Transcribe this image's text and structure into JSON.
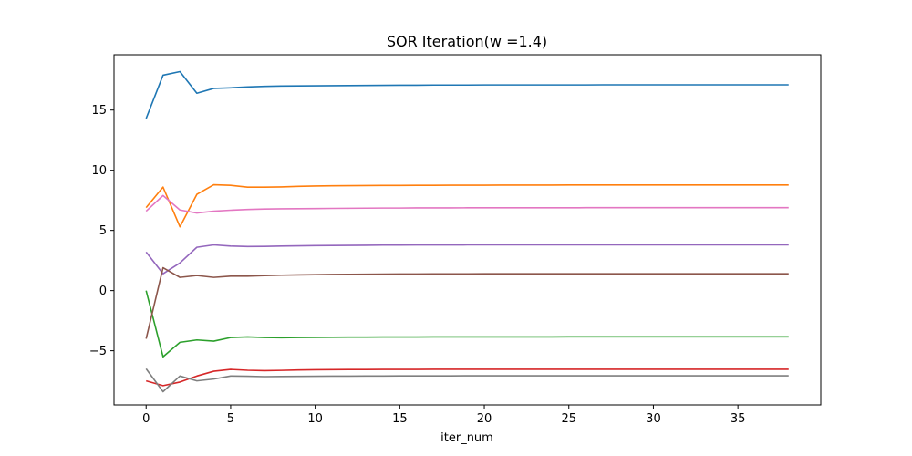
{
  "chart_data": {
    "type": "line",
    "title": "SOR Iteration(w =1.4)",
    "xlabel": "iter_num",
    "ylabel": "",
    "xlim": [
      -1.9,
      39.9
    ],
    "ylim": [
      -9.5,
      19.6
    ],
    "xticks": [
      0,
      5,
      10,
      15,
      20,
      25,
      30,
      35
    ],
    "yticks": [
      -5,
      0,
      5,
      10,
      15
    ],
    "xtick_labels": [
      "0",
      "5",
      "10",
      "15",
      "20",
      "25",
      "30",
      "35"
    ],
    "ytick_labels": [
      "−5",
      "0",
      "5",
      "10",
      "15"
    ],
    "grid": false,
    "x": [
      0,
      1,
      2,
      3,
      4,
      5,
      6,
      7,
      8,
      9,
      10,
      11,
      12,
      13,
      14,
      15,
      16,
      17,
      18,
      19,
      20,
      21,
      22,
      23,
      24,
      25,
      26,
      27,
      28,
      29,
      30,
      31,
      32,
      33,
      34,
      35,
      36,
      37,
      38
    ],
    "series": [
      {
        "color": "#1f77b4",
        "values": [
          14.3,
          17.9,
          18.2,
          16.4,
          16.8,
          16.85,
          16.92,
          16.97,
          17.0,
          17.01,
          17.02,
          17.03,
          17.04,
          17.05,
          17.06,
          17.07,
          17.07,
          17.08,
          17.08,
          17.08,
          17.09,
          17.09,
          17.09,
          17.09,
          17.09,
          17.09,
          17.09,
          17.1,
          17.1,
          17.1,
          17.1,
          17.1,
          17.1,
          17.1,
          17.1,
          17.1,
          17.1,
          17.1,
          17.1
        ]
      },
      {
        "color": "#ff7f0e",
        "values": [
          6.9,
          8.6,
          5.3,
          8.0,
          8.8,
          8.75,
          8.6,
          8.6,
          8.62,
          8.66,
          8.69,
          8.71,
          8.72,
          8.73,
          8.74,
          8.74,
          8.75,
          8.75,
          8.76,
          8.76,
          8.76,
          8.77,
          8.77,
          8.77,
          8.77,
          8.78,
          8.78,
          8.78,
          8.78,
          8.78,
          8.78,
          8.78,
          8.78,
          8.78,
          8.78,
          8.78,
          8.78,
          8.78,
          8.78
        ]
      },
      {
        "color": "#2ca02c",
        "values": [
          0.0,
          -5.5,
          -4.3,
          -4.1,
          -4.2,
          -3.9,
          -3.85,
          -3.9,
          -3.92,
          -3.9,
          -3.89,
          -3.88,
          -3.87,
          -3.87,
          -3.86,
          -3.86,
          -3.86,
          -3.85,
          -3.85,
          -3.85,
          -3.85,
          -3.85,
          -3.85,
          -3.85,
          -3.85,
          -3.84,
          -3.84,
          -3.84,
          -3.84,
          -3.84,
          -3.84,
          -3.84,
          -3.84,
          -3.84,
          -3.84,
          -3.84,
          -3.84,
          -3.84,
          -3.84
        ]
      },
      {
        "color": "#d62728",
        "values": [
          -7.5,
          -7.9,
          -7.6,
          -7.1,
          -6.7,
          -6.55,
          -6.62,
          -6.65,
          -6.63,
          -6.6,
          -6.58,
          -6.57,
          -6.56,
          -6.56,
          -6.55,
          -6.55,
          -6.55,
          -6.54,
          -6.54,
          -6.54,
          -6.54,
          -6.54,
          -6.54,
          -6.54,
          -6.54,
          -6.54,
          -6.54,
          -6.54,
          -6.54,
          -6.54,
          -6.54,
          -6.54,
          -6.54,
          -6.54,
          -6.54,
          -6.54,
          -6.54,
          -6.54,
          -6.54
        ]
      },
      {
        "color": "#9467bd",
        "values": [
          3.2,
          1.4,
          2.3,
          3.6,
          3.8,
          3.7,
          3.66,
          3.67,
          3.7,
          3.72,
          3.74,
          3.75,
          3.76,
          3.77,
          3.78,
          3.78,
          3.79,
          3.79,
          3.79,
          3.8,
          3.8,
          3.8,
          3.8,
          3.8,
          3.8,
          3.8,
          3.8,
          3.8,
          3.8,
          3.8,
          3.8,
          3.8,
          3.8,
          3.8,
          3.8,
          3.8,
          3.8,
          3.8,
          3.8
        ]
      },
      {
        "color": "#8c564b",
        "values": [
          -4.0,
          1.9,
          1.1,
          1.25,
          1.1,
          1.2,
          1.2,
          1.25,
          1.28,
          1.3,
          1.32,
          1.34,
          1.35,
          1.36,
          1.37,
          1.38,
          1.38,
          1.39,
          1.39,
          1.39,
          1.4,
          1.4,
          1.4,
          1.4,
          1.4,
          1.4,
          1.4,
          1.4,
          1.4,
          1.4,
          1.4,
          1.4,
          1.4,
          1.4,
          1.4,
          1.4,
          1.4,
          1.4,
          1.4
        ]
      },
      {
        "color": "#e377c2",
        "values": [
          6.6,
          7.9,
          6.7,
          6.45,
          6.6,
          6.68,
          6.74,
          6.78,
          6.8,
          6.81,
          6.82,
          6.83,
          6.84,
          6.85,
          6.86,
          6.86,
          6.87,
          6.87,
          6.87,
          6.88,
          6.88,
          6.88,
          6.88,
          6.88,
          6.88,
          6.88,
          6.89,
          6.89,
          6.89,
          6.89,
          6.89,
          6.89,
          6.89,
          6.89,
          6.89,
          6.89,
          6.89,
          6.89,
          6.89
        ]
      },
      {
        "color": "#7f7f7f",
        "values": [
          -6.5,
          -8.4,
          -7.1,
          -7.5,
          -7.35,
          -7.1,
          -7.12,
          -7.15,
          -7.14,
          -7.13,
          -7.12,
          -7.11,
          -7.11,
          -7.1,
          -7.1,
          -7.09,
          -7.09,
          -7.09,
          -7.09,
          -7.08,
          -7.08,
          -7.08,
          -7.08,
          -7.08,
          -7.08,
          -7.08,
          -7.08,
          -7.08,
          -7.08,
          -7.08,
          -7.08,
          -7.08,
          -7.08,
          -7.08,
          -7.08,
          -7.08,
          -7.08,
          -7.08,
          -7.08
        ]
      }
    ]
  }
}
